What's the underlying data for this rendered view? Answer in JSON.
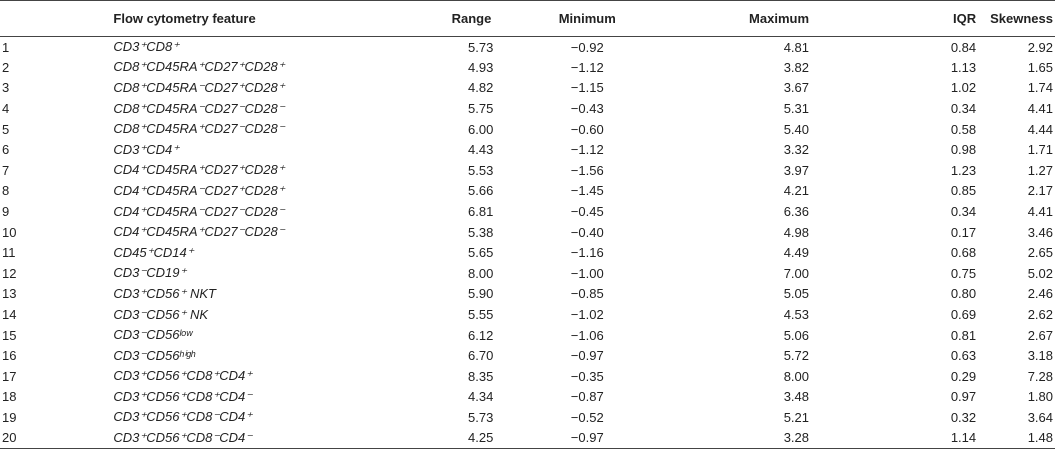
{
  "headers": {
    "index": "",
    "feature": "Flow cytometry feature",
    "range": "Range",
    "minimum": "Minimum",
    "maximum": "Maximum",
    "iqr": "IQR",
    "skewness": "Skewness"
  },
  "rows": [
    {
      "index": "1",
      "feature": "CD3⁺CD8⁺",
      "range": "5.73",
      "minimum": "−0.92",
      "maximum": "4.81",
      "iqr": "0.84",
      "skewness": "2.92"
    },
    {
      "index": "2",
      "feature": "CD8⁺CD45RA⁺CD27⁺CD28⁺",
      "range": "4.93",
      "minimum": "−1.12",
      "maximum": "3.82",
      "iqr": "1.13",
      "skewness": "1.65"
    },
    {
      "index": "3",
      "feature": "CD8⁺CD45RA⁻CD27⁺CD28⁺",
      "range": "4.82",
      "minimum": "−1.15",
      "maximum": "3.67",
      "iqr": "1.02",
      "skewness": "1.74"
    },
    {
      "index": "4",
      "feature": "CD8⁺CD45RA⁻CD27⁻CD28⁻",
      "range": "5.75",
      "minimum": "−0.43",
      "maximum": "5.31",
      "iqr": "0.34",
      "skewness": "4.41"
    },
    {
      "index": "5",
      "feature": "CD8⁺CD45RA⁺CD27⁻CD28⁻",
      "range": "6.00",
      "minimum": "−0.60",
      "maximum": "5.40",
      "iqr": "0.58",
      "skewness": "4.44"
    },
    {
      "index": "6",
      "feature": "CD3⁺CD4⁺",
      "range": "4.43",
      "minimum": "−1.12",
      "maximum": "3.32",
      "iqr": "0.98",
      "skewness": "1.71"
    },
    {
      "index": "7",
      "feature": "CD4⁺CD45RA⁺CD27⁺CD28⁺",
      "range": "5.53",
      "minimum": "−1.56",
      "maximum": "3.97",
      "iqr": "1.23",
      "skewness": "1.27"
    },
    {
      "index": "8",
      "feature": "CD4⁺CD45RA⁻CD27⁺CD28⁺",
      "range": "5.66",
      "minimum": "−1.45",
      "maximum": "4.21",
      "iqr": "0.85",
      "skewness": "2.17"
    },
    {
      "index": "9",
      "feature": "CD4⁺CD45RA⁻CD27⁻CD28⁻",
      "range": "6.81",
      "minimum": "−0.45",
      "maximum": "6.36",
      "iqr": "0.34",
      "skewness": "4.41"
    },
    {
      "index": "10",
      "feature": "CD4⁺CD45RA⁺CD27⁻CD28⁻",
      "range": "5.38",
      "minimum": "−0.40",
      "maximum": "4.98",
      "iqr": "0.17",
      "skewness": "3.46"
    },
    {
      "index": "11",
      "feature": "CD45⁺CD14⁺",
      "range": "5.65",
      "minimum": "−1.16",
      "maximum": "4.49",
      "iqr": "0.68",
      "skewness": "2.65"
    },
    {
      "index": "12",
      "feature": "CD3⁻CD19⁺",
      "range": "8.00",
      "minimum": "−1.00",
      "maximum": "7.00",
      "iqr": "0.75",
      "skewness": "5.02"
    },
    {
      "index": "13",
      "feature": "CD3⁺CD56⁺ NKT",
      "range": "5.90",
      "minimum": "−0.85",
      "maximum": "5.05",
      "iqr": "0.80",
      "skewness": "2.46"
    },
    {
      "index": "14",
      "feature": "CD3⁻CD56⁺ NK",
      "range": "5.55",
      "minimum": "−1.02",
      "maximum": "4.53",
      "iqr": "0.69",
      "skewness": "2.62"
    },
    {
      "index": "15",
      "feature": "CD3⁻CD56ˡᵒʷ",
      "range": "6.12",
      "minimum": "−1.06",
      "maximum": "5.06",
      "iqr": "0.81",
      "skewness": "2.67"
    },
    {
      "index": "16",
      "feature": "CD3⁻CD56ʰⁱᵍʰ",
      "range": "6.70",
      "minimum": "−0.97",
      "maximum": "5.72",
      "iqr": "0.63",
      "skewness": "3.18"
    },
    {
      "index": "17",
      "feature": "CD3⁺CD56⁺CD8⁺CD4⁺",
      "range": "8.35",
      "minimum": "−0.35",
      "maximum": "8.00",
      "iqr": "0.29",
      "skewness": "7.28"
    },
    {
      "index": "18",
      "feature": "CD3⁺CD56⁺CD8⁺CD4⁻",
      "range": "4.34",
      "minimum": "−0.87",
      "maximum": "3.48",
      "iqr": "0.97",
      "skewness": "1.80"
    },
    {
      "index": "19",
      "feature": "CD3⁺CD56⁺CD8⁻CD4⁺",
      "range": "5.73",
      "minimum": "−0.52",
      "maximum": "5.21",
      "iqr": "0.32",
      "skewness": "3.64"
    },
    {
      "index": "20",
      "feature": "CD3⁺CD56⁺CD8⁻CD4⁻",
      "range": "4.25",
      "minimum": "−0.97",
      "maximum": "3.28",
      "iqr": "1.14",
      "skewness": "1.48"
    }
  ]
}
